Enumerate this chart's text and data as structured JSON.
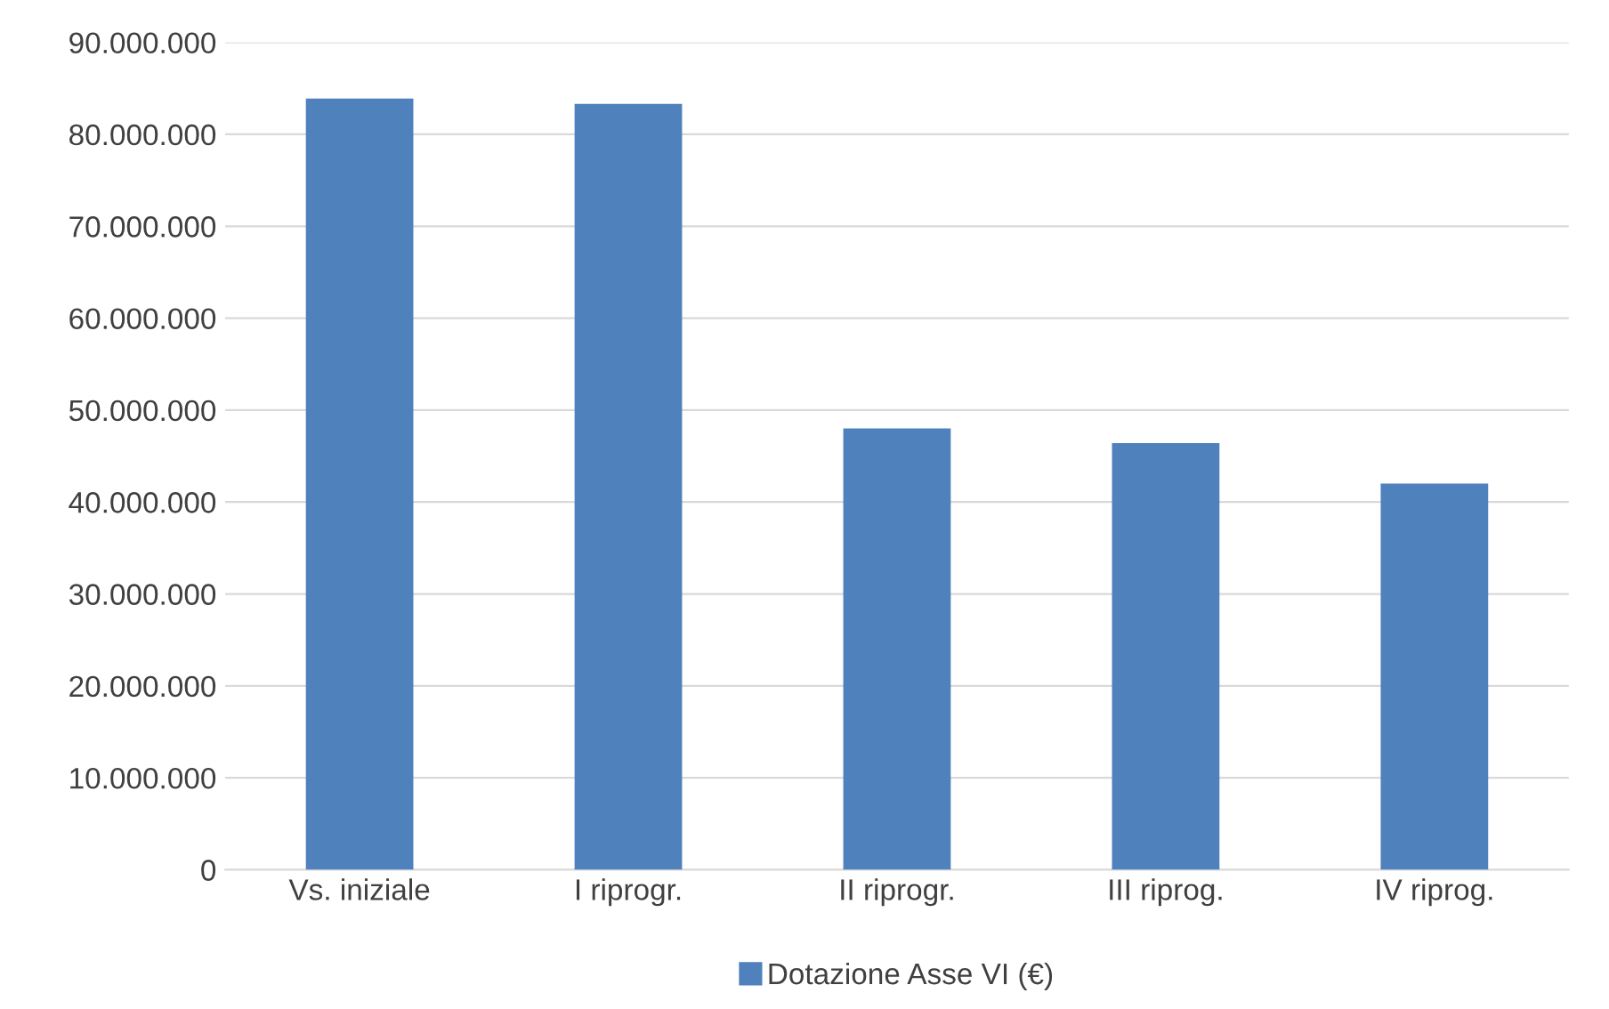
{
  "chart_data": {
    "type": "bar",
    "categories": [
      "Vs. iniziale",
      "I riprogr.",
      "II riprogr.",
      "III riprog.",
      "IV riprog."
    ],
    "series": [
      {
        "name": "Dotazione Asse VI (€)",
        "color": "#4f81bd",
        "values": [
          83900000,
          83300000,
          48000000,
          46400000,
          42000000
        ]
      }
    ],
    "ylim": [
      0,
      90000000
    ],
    "yticks": [
      0,
      {
        "value": 10000000,
        "label": "10.000.000"
      },
      {
        "value": 20000000,
        "label": "20.000.000"
      },
      {
        "value": 30000000,
        "label": "30.000.000"
      },
      {
        "value": 40000000,
        "label": "40.000.000"
      },
      {
        "value": 50000000,
        "label": "50.000.000"
      },
      {
        "value": 60000000,
        "label": "60.000.000"
      },
      {
        "value": 70000000,
        "label": "70.000.000"
      },
      {
        "value": 80000000,
        "label": "80.000.000"
      },
      {
        "value": 90000000,
        "label": "90.000.000"
      }
    ],
    "grid": "y",
    "legend": "bottom"
  }
}
